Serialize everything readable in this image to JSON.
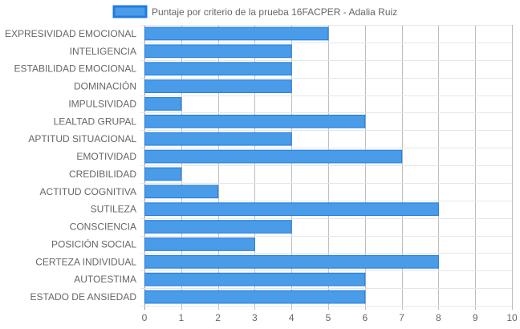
{
  "chart_data": {
    "type": "bar",
    "orientation": "horizontal",
    "legend_position": "top-center",
    "grid": true,
    "xlim": [
      0,
      10
    ],
    "x_ticks": [
      0,
      1,
      2,
      3,
      4,
      5,
      6,
      7,
      8,
      9,
      10
    ],
    "categories": [
      "EXPRESIVIDAD EMOCIONAL",
      "INTELIGENCIA",
      "ESTABILIDAD EMOCIONAL",
      "DOMINACIÓN",
      "IMPULSIVIDAD",
      "LEALTAD GRUPAL",
      "APTITUD SITUACIONAL",
      "EMOTIVIDAD",
      "CREDIBILIDAD",
      "ACTITUD COGNITIVA",
      "SUTILEZA",
      "CONSCIENCIA",
      "POSICIÓN SOCIAL",
      "CERTEZA INDIVIDUAL",
      "AUTOESTIMA",
      "ESTADO DE ANSIEDAD"
    ],
    "series": [
      {
        "name": "Puntaje por criterio de la prueba 16FACPER - Adalia Ruiz",
        "values": [
          5,
          4,
          4,
          4,
          1,
          6,
          4,
          7,
          1,
          2,
          8,
          4,
          3,
          8,
          6,
          6
        ],
        "color": "#4a9be8",
        "border_color": "#1f7ce0"
      }
    ]
  }
}
